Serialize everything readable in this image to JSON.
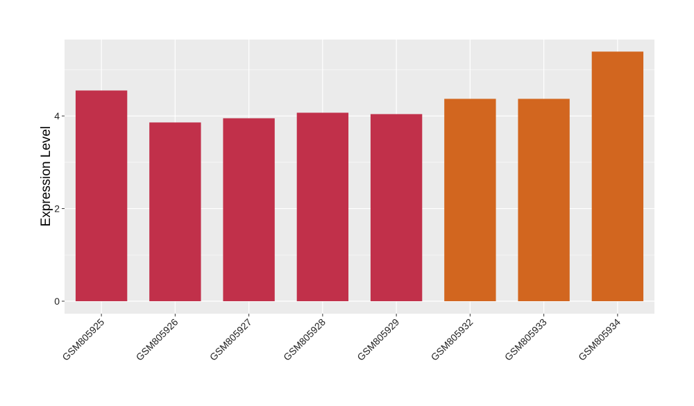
{
  "chart_data": {
    "type": "bar",
    "title": "",
    "xlabel": "",
    "ylabel": "Expression Level",
    "categories": [
      "GSM805925",
      "GSM805926",
      "GSM805927",
      "GSM805928",
      "GSM805929",
      "GSM805932",
      "GSM805933",
      "GSM805934"
    ],
    "values": [
      4.55,
      3.86,
      3.95,
      4.07,
      4.04,
      4.37,
      4.37,
      5.39
    ],
    "bar_colors": [
      "#c1304a",
      "#c1304a",
      "#c1304a",
      "#c1304a",
      "#c1304a",
      "#d2661f",
      "#d2661f",
      "#d2661f"
    ],
    "ylim": [
      -0.27,
      5.65
    ],
    "yticks": [
      0,
      2,
      4
    ],
    "ytick_labels": [
      "0",
      "2",
      "4"
    ],
    "grid": true,
    "panel_background": "#ebebeb",
    "gridline_color": "#ffffff"
  }
}
